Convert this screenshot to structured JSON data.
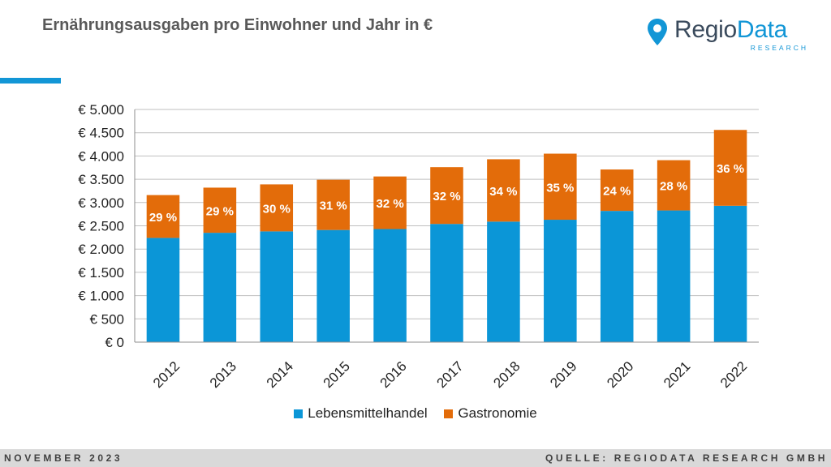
{
  "header": {
    "title": "Ernährungsausgaben pro Einwohner und Jahr in €"
  },
  "logo": {
    "name_part1": "Regio",
    "name_part2": "Data",
    "subtitle": "RESEARCH",
    "icon": "map-pin-icon"
  },
  "footer": {
    "date": "NOVEMBER 2023",
    "source": "QUELLE: REGIODATA RESEARCH GMBH"
  },
  "colors": {
    "lebensmittelhandel": "#0b96d7",
    "gastronomie": "#e36c0a",
    "accent": "#1296d6"
  },
  "chart_data": {
    "type": "bar",
    "stacked": true,
    "categories": [
      "2012",
      "2013",
      "2014",
      "2015",
      "2016",
      "2017",
      "2018",
      "2019",
      "2020",
      "2021",
      "2022"
    ],
    "series": [
      {
        "name": "Lebensmittelhandel",
        "values": [
          2240,
          2350,
          2380,
          2410,
          2430,
          2540,
          2590,
          2630,
          2820,
          2830,
          2930
        ]
      },
      {
        "name": "Gastronomie",
        "values": [
          920,
          970,
          1010,
          1080,
          1130,
          1220,
          1340,
          1420,
          890,
          1080,
          1630
        ]
      }
    ],
    "data_labels": [
      "29 %",
      "29 %",
      "30 %",
      "31 %",
      "32 %",
      "32 %",
      "34 %",
      "35 %",
      "24 %",
      "28 %",
      "36 %"
    ],
    "ylim": [
      0,
      5000
    ],
    "yticks": [
      0,
      500,
      1000,
      1500,
      2000,
      2500,
      3000,
      3500,
      4000,
      4500,
      5000
    ],
    "ytick_labels": [
      "€ 0",
      "€ 500",
      "€ 1.000",
      "€ 1.500",
      "€ 2.000",
      "€ 2.500",
      "€ 3.000",
      "€ 3.500",
      "€ 4.000",
      "€ 4.500",
      "€ 5.000"
    ],
    "grid": true,
    "legend_position": "bottom"
  }
}
